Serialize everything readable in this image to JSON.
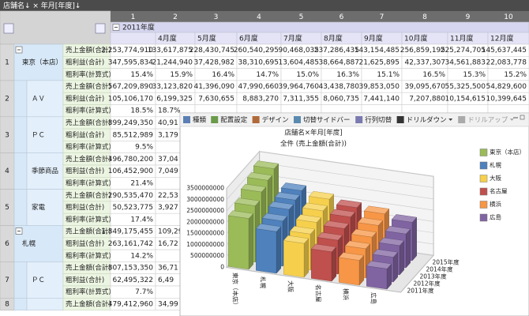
{
  "header": {
    "label": "店舗名↓ × 年月[年度]↓"
  },
  "table": {
    "column_numbers": [
      "1",
      "2",
      "3",
      "4",
      "5",
      "6",
      "7",
      "8",
      "9",
      "10"
    ],
    "year": "2011年度",
    "months": [
      "4月度",
      "5月度",
      "6月度",
      "7月度",
      "8月度",
      "9月度",
      "10月度",
      "11月度",
      "12月度"
    ],
    "row_groups": [
      {
        "number": "1",
        "label": "東京（本店）",
        "level": 1,
        "rows": [
          {
            "measure": "売上金額(合計)",
            "cells": [
              "2,253,774,910",
              "133,617,875",
              "228,430,745",
              "260,540,295",
              "90,468,035",
              "237,286,435",
              "143,154,485",
              "256,859,195",
              "225,274,705",
              "145,637,445"
            ]
          },
          {
            "measure": "粗利益(合計)",
            "cells": [
              "347,595,834",
              "21,244,940",
              "37,428,982",
              "38,310,695",
              "13,604,485",
              "38,664,887",
              "21,625,895",
              "42,337,307",
              "34,561,883",
              "22,083,778"
            ]
          },
          {
            "measure": "粗利率(計算式)",
            "cells": [
              "15.4%",
              "15.9%",
              "16.4%",
              "14.7%",
              "15.0%",
              "16.3%",
              "15.1%",
              "16.5%",
              "15.3%",
              "15.2%"
            ]
          }
        ]
      },
      {
        "number": "2",
        "label": "ＡＶ",
        "level": 2,
        "rows": [
          {
            "measure": "売上金額(合計)",
            "cells": [
              "567,209,890",
              "33,123,820",
              "41,396,090",
              "47,990,660",
              "39,964,760",
              "43,438,780",
              "39,853,050",
              "39,095,670",
              "55,325,500",
              "54,829,600"
            ]
          },
          {
            "measure": "粗利益(合計)",
            "cells": [
              "105,106,170",
              "6,199,325",
              "7,630,655",
              "8,883,270",
              "7,311,355",
              "8,060,735",
              "7,441,140",
              "7,207,880",
              "10,154,615",
              "10,399,645"
            ]
          },
          {
            "measure": "粗利率(計算式)",
            "cells": [
              "18.5%",
              "18.7%"
            ]
          }
        ]
      },
      {
        "number": "3",
        "label": "ＰＣ",
        "level": 2,
        "rows": [
          {
            "measure": "売上金額(合計)",
            "cells": [
              "899,249,350",
              "40,91"
            ]
          },
          {
            "measure": "粗利益(合計)",
            "cells": [
              "85,512,989",
              "3,179"
            ]
          },
          {
            "measure": "粗利率(計算式)",
            "cells": [
              "9.5%"
            ]
          }
        ]
      },
      {
        "number": "4",
        "label": "季節商品",
        "level": 2,
        "rows": [
          {
            "measure": "売上金額(合計)",
            "cells": [
              "496,780,200",
              "37,04"
            ]
          },
          {
            "measure": "粗利益(合計)",
            "cells": [
              "106,452,900",
              "7,049"
            ]
          },
          {
            "measure": "粗利率(計算式)",
            "cells": [
              "21.4%"
            ]
          }
        ]
      },
      {
        "number": "5",
        "label": "家電",
        "level": 2,
        "rows": [
          {
            "measure": "売上金額(合計)",
            "cells": [
              "290,535,470",
              "22,53"
            ]
          },
          {
            "measure": "粗利益(合計)",
            "cells": [
              "50,523,775",
              "3,927"
            ]
          },
          {
            "measure": "粗利率(計算式)",
            "cells": [
              "17.4%"
            ]
          }
        ]
      },
      {
        "number": "6",
        "label": "札幌",
        "level": 1,
        "rows": [
          {
            "measure": "売上金額(合計)",
            "cells": [
              "1,849,175,455",
              "109,29"
            ]
          },
          {
            "measure": "粗利益(合計)",
            "cells": [
              "263,161,742",
              "16,72"
            ]
          },
          {
            "measure": "粗利率(計算式)",
            "cells": [
              "14.2%"
            ]
          }
        ]
      },
      {
        "number": "7",
        "label": "ＰＣ",
        "level": 2,
        "rows": [
          {
            "measure": "売上金額(合計)",
            "cells": [
              "807,153,350",
              "36,71"
            ]
          },
          {
            "measure": "粗利益(合計)",
            "cells": [
              "62,495,322",
              "6,49"
            ]
          },
          {
            "measure": "粗利率(計算式)",
            "cells": [
              "7.7%"
            ]
          }
        ]
      },
      {
        "number": "8",
        "level": 2,
        "rows": [
          {
            "measure": "売上金額(合計)",
            "cells": [
              "479,412,960",
              "34,99"
            ]
          }
        ]
      }
    ]
  },
  "window": {
    "toolbar": [
      "種類",
      "配置設定",
      "デザイン",
      "切替サイドバー",
      "行列切替",
      "ドリルダウン",
      "ドリルアップ"
    ]
  },
  "chart_data": {
    "type": "bar3d",
    "title": "店舗名×年月[年度]",
    "subtitle": "全件 (売上金額(合計))",
    "categories": [
      "2011年度",
      "2012年度",
      "2013年度",
      "2014年度",
      "2015年度"
    ],
    "series": [
      {
        "name": "東京（本店）",
        "color": "#9bbb59",
        "values": [
          2253774910,
          2500000000,
          2800000000,
          3000000000,
          3200000000
        ]
      },
      {
        "name": "札幌",
        "color": "#4f81bd",
        "values": [
          1849175455,
          2000000000,
          2200000000,
          2300000000,
          2400000000
        ]
      },
      {
        "name": "大阪",
        "color": "#f6d04d",
        "values": [
          1500000000,
          1600000000,
          1800000000,
          2000000000,
          2200000000
        ]
      },
      {
        "name": "名古屋",
        "color": "#c0504d",
        "values": [
          1300000000,
          1500000000,
          1700000000,
          1900000000,
          2000000000
        ]
      },
      {
        "name": "横浜",
        "color": "#f79646",
        "values": [
          1100000000,
          1300000000,
          1500000000,
          1700000000,
          1900000000
        ]
      },
      {
        "name": "広島",
        "color": "#8064a2",
        "values": [
          900000000,
          1100000000,
          1300000000,
          1500000000,
          1700000000
        ]
      }
    ],
    "ylim": [
      0,
      3500000000
    ],
    "yticks": [
      0,
      500000000,
      1000000000,
      1500000000,
      2000000000,
      2500000000,
      3000000000,
      3500000000
    ],
    "grid": true
  }
}
